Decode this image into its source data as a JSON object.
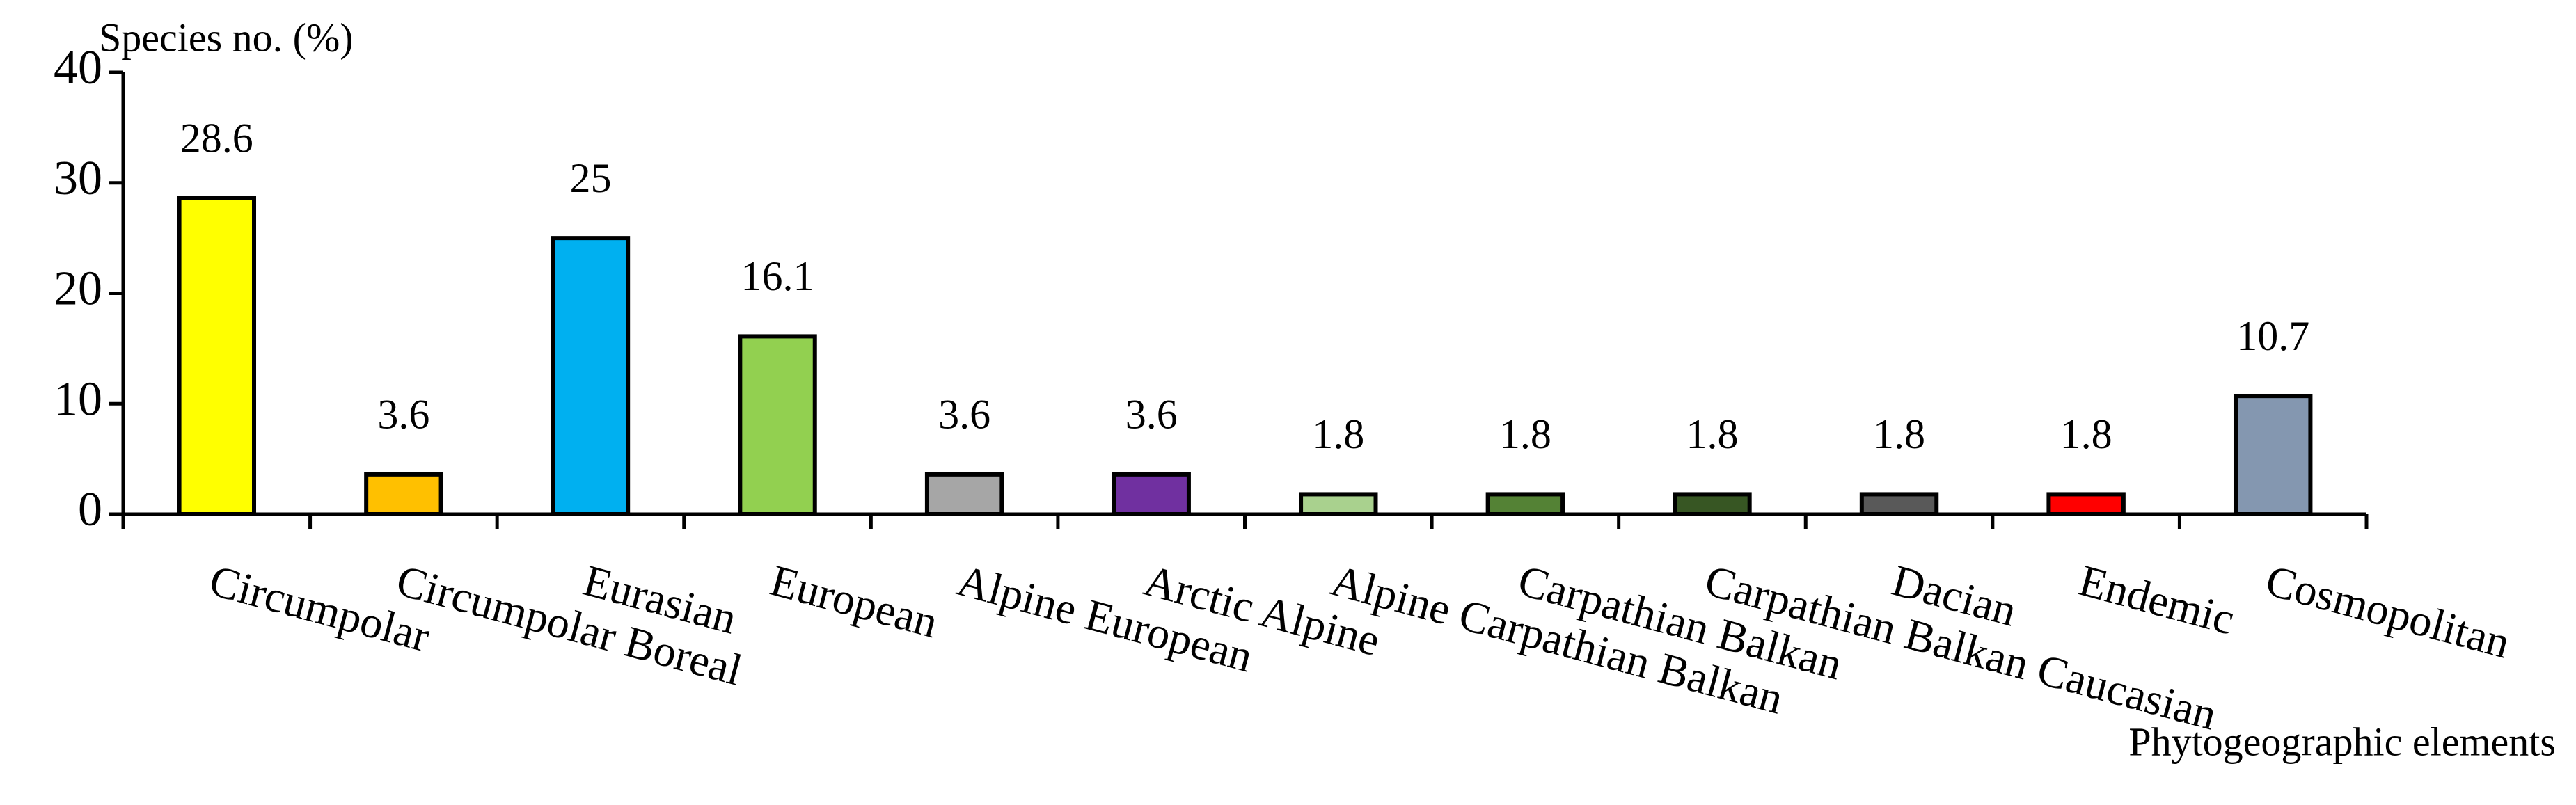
{
  "chart_data": {
    "type": "bar",
    "y_label": "Species no. (%)",
    "x_label": "Phytogeographic elements",
    "categories": [
      "Circumpolar",
      "Circumpolar Boreal",
      "Eurasian",
      "European",
      "Alpine European",
      "Arctic Alpine",
      "Alpine Carpathian Balkan",
      "Carpathian Balkan",
      "Carpathian Balkan Caucasian",
      "Dacian",
      "Endemic",
      "Cosmopolitan"
    ],
    "values": [
      28.6,
      3.6,
      25,
      16.1,
      3.6,
      3.6,
      1.8,
      1.8,
      1.8,
      1.8,
      1.8,
      10.7
    ],
    "colors": [
      "#ffff00",
      "#ffc000",
      "#00b0f0",
      "#92d050",
      "#a6a6a6",
      "#7030a0",
      "#a9d18e",
      "#548235",
      "#375623",
      "#595959",
      "#ff0000",
      "#8497b0"
    ],
    "ylim": [
      0,
      40
    ],
    "yticks": [
      0,
      10,
      20,
      30,
      40
    ],
    "grid": false
  }
}
